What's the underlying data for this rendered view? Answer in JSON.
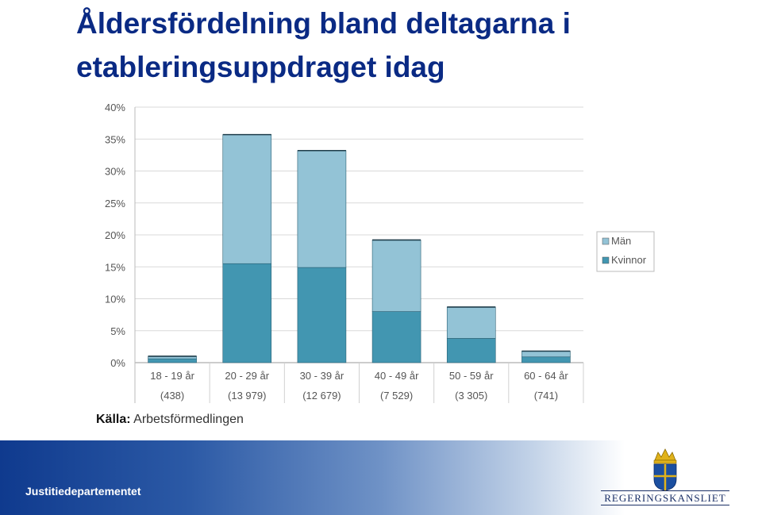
{
  "title_line1": "Åldersfördelning bland deltagarna i",
  "title_line2": "etableringsuppdraget idag",
  "source_label": "Källa:",
  "source_value": "Arbetsförmedlingen",
  "footer_department": "Justitiedepartementet",
  "logo_text": "REGERINGSKANSLIET",
  "colors": {
    "man": "#93c3d6",
    "kvinnor": "#4296b1",
    "title": "#0a2a84"
  },
  "chart_data": {
    "type": "bar",
    "stacked": true,
    "categories": [
      "18 - 19 år",
      "20 - 29 år",
      "30 - 39 år",
      "40 - 49 år",
      "50 - 59 år",
      "60 - 64 år"
    ],
    "counts": [
      "(438)",
      "(13 979)",
      "(12 679)",
      "(7 529)",
      "(3 305)",
      "(741)"
    ],
    "series": [
      {
        "name": "Kvinnor",
        "values": [
          0.6,
          15.5,
          14.9,
          8.0,
          3.8,
          0.9
        ]
      },
      {
        "name": "Män",
        "values": [
          0.4,
          20.2,
          18.3,
          11.2,
          4.9,
          0.9
        ]
      }
    ],
    "y_ticks": [
      "0%",
      "5%",
      "10%",
      "15%",
      "20%",
      "25%",
      "30%",
      "35%",
      "40%"
    ],
    "ylim": [
      0,
      40
    ],
    "legend": [
      "Män",
      "Kvinnor"
    ],
    "legend_position": "right",
    "grid": true
  }
}
